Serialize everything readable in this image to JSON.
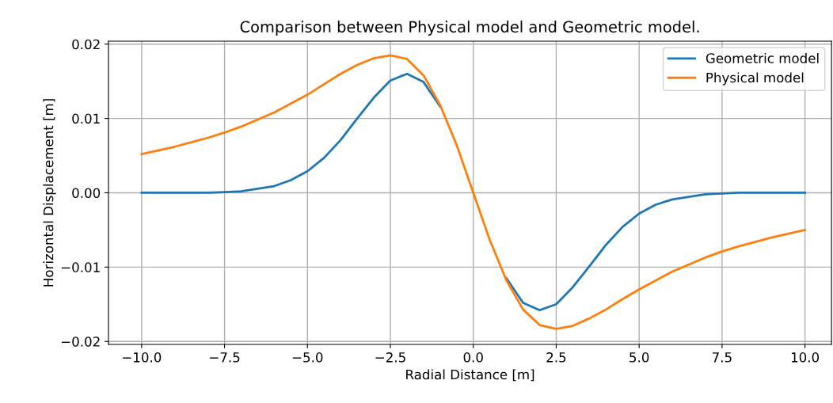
{
  "chart_data": {
    "type": "line",
    "title": "Comparison between Physical model and Geometric model.",
    "xlabel": "Radial Distance [m]",
    "ylabel": "Horizontal Displacement [m]",
    "x": [
      -10,
      -9,
      -8,
      -7.5,
      -7,
      -6,
      -5.5,
      -5,
      -4.5,
      -4,
      -3.5,
      -3,
      -2.5,
      -2,
      -1.5,
      -1,
      -0.5,
      0,
      0.5,
      1,
      1.5,
      2,
      2.5,
      3,
      3.5,
      4,
      4.5,
      5,
      5.5,
      6,
      7,
      7.5,
      8,
      9,
      10
    ],
    "series": [
      {
        "name": "Geometric model",
        "color": "#1f77b4",
        "values": [
          0.0,
          0.0,
          0.0,
          0.0001,
          0.0002,
          0.0009,
          0.0017,
          0.0029,
          0.0047,
          0.0071,
          0.01,
          0.0128,
          0.0151,
          0.016,
          0.0149,
          0.0116,
          null,
          null,
          null,
          -0.0115,
          -0.0148,
          -0.0158,
          -0.015,
          -0.0127,
          -0.0099,
          -0.007,
          -0.0046,
          -0.0028,
          -0.0016,
          -0.0009,
          -0.0002,
          -0.0001,
          0.0,
          0.0,
          0.0
        ]
      },
      {
        "name": "Physical model",
        "color": "#ff7f0e",
        "values": [
          0.0052,
          0.0062,
          0.0074,
          0.0081,
          0.0089,
          0.0108,
          0.012,
          0.0132,
          0.0146,
          0.016,
          0.0172,
          0.0181,
          0.0185,
          0.018,
          0.0158,
          0.0118,
          0.0064,
          0.0,
          -0.0064,
          -0.0118,
          -0.0157,
          -0.0178,
          -0.0183,
          -0.0179,
          -0.0169,
          -0.0157,
          -0.0143,
          -0.013,
          -0.0118,
          -0.0106,
          -0.0087,
          -0.0079,
          -0.0072,
          -0.006,
          -0.005
        ]
      }
    ],
    "xlim": [
      -11,
      10.8
    ],
    "ylim": [
      -0.0204,
      0.0204
    ],
    "xticks": [
      {
        "value": -10,
        "label": "−10.0"
      },
      {
        "value": -7.5,
        "label": "−7.5"
      },
      {
        "value": -5,
        "label": "−5.0"
      },
      {
        "value": -2.5,
        "label": "−2.5"
      },
      {
        "value": 0,
        "label": "0.0"
      },
      {
        "value": 2.5,
        "label": "2.5"
      },
      {
        "value": 5,
        "label": "5.0"
      },
      {
        "value": 7.5,
        "label": "7.5"
      },
      {
        "value": 10,
        "label": "10.0"
      }
    ],
    "yticks": [
      {
        "value": -0.02,
        "label": "−0.02"
      },
      {
        "value": -0.01,
        "label": "−0.01"
      },
      {
        "value": 0,
        "label": "0.00"
      },
      {
        "value": 0.01,
        "label": "0.01"
      },
      {
        "value": 0.02,
        "label": "0.02"
      }
    ],
    "grid": true,
    "legend": "top right",
    "marker": "none",
    "line_style": "solid"
  }
}
